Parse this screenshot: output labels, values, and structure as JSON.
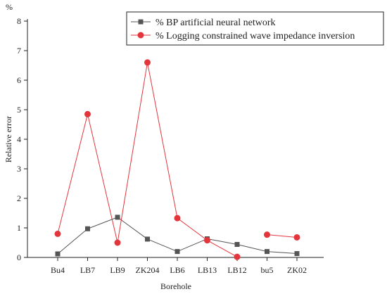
{
  "chart_data": {
    "type": "line",
    "xlabel": "Borehole",
    "ylabel": "Relative error",
    "y_unit": "%",
    "ylim": [
      0,
      8
    ],
    "yticks": [
      0,
      1,
      2,
      3,
      4,
      5,
      6,
      7,
      8
    ],
    "categories": [
      "Bu4",
      "LB7",
      "LB9",
      "ZK204",
      "LB6",
      "LB13",
      "LB12",
      "bu5",
      "ZK02"
    ],
    "grid": false,
    "legend_position": "top-right",
    "series": [
      {
        "name": "% BP artificial neural network",
        "color": "#555555",
        "marker": "square",
        "values": [
          0.12,
          0.97,
          1.36,
          0.62,
          0.2,
          0.63,
          0.44,
          0.2,
          0.13
        ],
        "connected": true
      },
      {
        "name": "% Logging constrained wave impedance inversion",
        "color": "#e3353c",
        "marker": "circle",
        "values": [
          0.8,
          4.85,
          0.5,
          6.6,
          1.33,
          0.58,
          0.02,
          0.77,
          0.68
        ],
        "connected": [
          true,
          true,
          true,
          true,
          true,
          true,
          false,
          true
        ]
      }
    ]
  }
}
